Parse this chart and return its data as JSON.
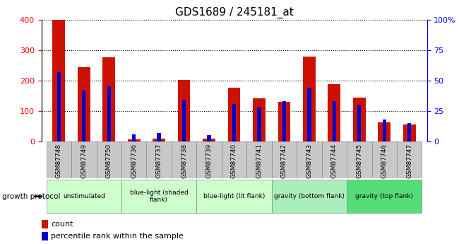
{
  "title": "GDS1689 / 245181_at",
  "samples": [
    "GSM87748",
    "GSM87749",
    "GSM87750",
    "GSM87736",
    "GSM87737",
    "GSM87738",
    "GSM87739",
    "GSM87740",
    "GSM87741",
    "GSM87742",
    "GSM87743",
    "GSM87744",
    "GSM87745",
    "GSM87746",
    "GSM87747"
  ],
  "count_values": [
    400,
    243,
    277,
    8,
    10,
    203,
    10,
    177,
    141,
    131,
    278,
    188,
    145,
    63,
    57
  ],
  "percentile_values": [
    57,
    42,
    45,
    6,
    7,
    34,
    5,
    31,
    28,
    33,
    44,
    33,
    30,
    18,
    15
  ],
  "group_boundaries": [
    {
      "start": 0,
      "end": 3,
      "label": "unstimulated",
      "color": "#ccffcc"
    },
    {
      "start": 3,
      "end": 6,
      "label": "blue-light (shaded\nflank)",
      "color": "#ccffcc"
    },
    {
      "start": 6,
      "end": 9,
      "label": "blue-light (lit flank)",
      "color": "#ccffcc"
    },
    {
      "start": 9,
      "end": 12,
      "label": "gravity (bottom flank)",
      "color": "#aaeebb"
    },
    {
      "start": 12,
      "end": 15,
      "label": "gravity (top flank)",
      "color": "#55dd77"
    }
  ],
  "ylim_left": [
    0,
    400
  ],
  "ylim_right": [
    0,
    100
  ],
  "yticks_left": [
    0,
    100,
    200,
    300,
    400
  ],
  "yticks_right": [
    0,
    25,
    50,
    75,
    100
  ],
  "red_bar_width": 0.5,
  "blue_bar_width": 0.15,
  "count_color": "#cc1100",
  "percentile_color": "#0000cc",
  "growth_protocol_label": "growth protocol",
  "legend_count": "count",
  "legend_percentile": "percentile rank within the sample",
  "sample_bg_color": "#c8c8c8",
  "plot_bg_color": "#ffffff"
}
